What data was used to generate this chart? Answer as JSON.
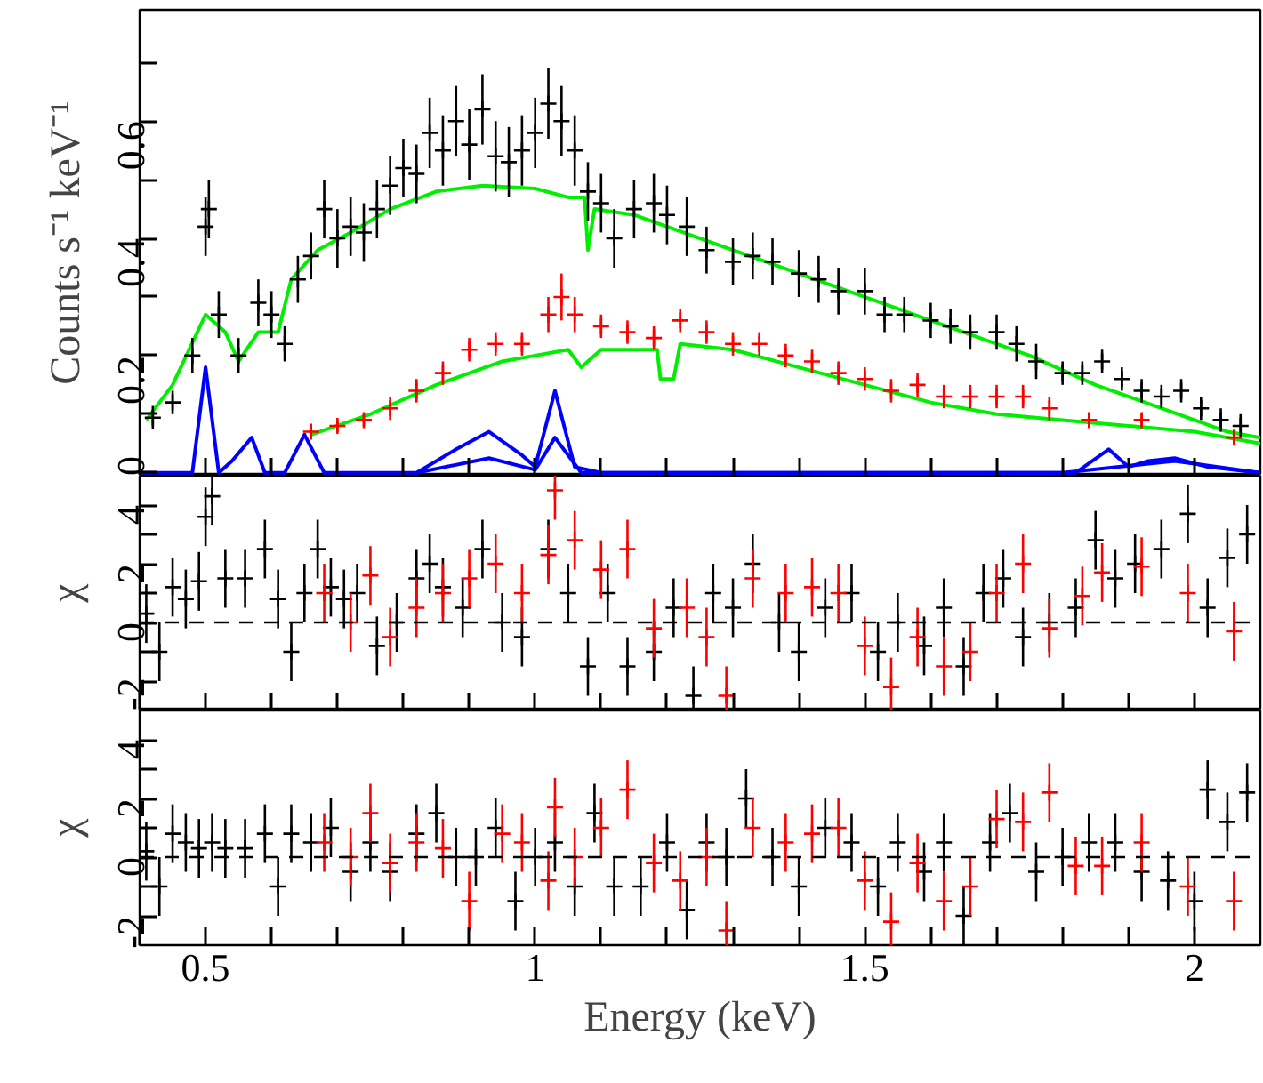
{
  "chart_data": [
    {
      "type": "scatter",
      "ylabel": "Counts s⁻¹ keV⁻¹",
      "xlim": [
        0.4,
        2.1
      ],
      "ylim": [
        -0.005,
        0.79
      ],
      "tick_labels": "y",
      "grid": false,
      "xticks": [
        {
          "value": 0.4,
          "label": null
        },
        0.5,
        {
          "value": 0.6,
          "label": null
        },
        {
          "value": 0.7,
          "label": null
        },
        {
          "value": 0.8,
          "label": null
        },
        {
          "value": 0.9,
          "label": null
        },
        1,
        {
          "value": 1.1,
          "label": null
        },
        {
          "value": 1.2,
          "label": null
        },
        {
          "value": 1.3,
          "label": null
        },
        {
          "value": 1.4,
          "label": null
        },
        1.5,
        {
          "value": 1.6,
          "label": null
        },
        {
          "value": 1.7,
          "label": null
        },
        {
          "value": 1.8,
          "label": null
        },
        {
          "value": 1.9,
          "label": null
        },
        2
      ],
      "yticks": [
        0,
        {
          "value": 0.1,
          "label": null
        },
        0.2,
        {
          "value": 0.3,
          "label": null
        },
        0.4,
        {
          "value": 0.5,
          "label": null
        },
        0.6,
        {
          "value": 0.7,
          "label": null
        }
      ],
      "series": [
        {
          "marker": "cross",
          "color": "#000000",
          "x": [
            0.42,
            0.45,
            0.48,
            0.5,
            0.505,
            0.52,
            0.55,
            0.58,
            0.6,
            0.62,
            0.64,
            0.66,
            0.68,
            0.7,
            0.72,
            0.74,
            0.76,
            0.78,
            0.8,
            0.82,
            0.84,
            0.86,
            0.88,
            0.9,
            0.92,
            0.94,
            0.96,
            0.98,
            1.0,
            1.02,
            1.04,
            1.06,
            1.08,
            1.1,
            1.12,
            1.15,
            1.18,
            1.2,
            1.23,
            1.26,
            1.3,
            1.33,
            1.36,
            1.4,
            1.43,
            1.46,
            1.5,
            1.53,
            1.56,
            1.6,
            1.63,
            1.66,
            1.7,
            1.73,
            1.76,
            1.8,
            1.83,
            1.86,
            1.89,
            1.92,
            1.95,
            1.98,
            2.01,
            2.04,
            2.07
          ],
          "values": [
            0.094,
            0.12,
            0.2,
            0.42,
            0.45,
            0.27,
            0.2,
            0.29,
            0.27,
            0.22,
            0.33,
            0.37,
            0.45,
            0.4,
            0.42,
            0.41,
            0.45,
            0.49,
            0.52,
            0.51,
            0.58,
            0.55,
            0.6,
            0.56,
            0.62,
            0.54,
            0.53,
            0.55,
            0.58,
            0.63,
            0.6,
            0.55,
            0.48,
            0.46,
            0.4,
            0.45,
            0.46,
            0.44,
            0.42,
            0.38,
            0.36,
            0.37,
            0.36,
            0.34,
            0.33,
            0.31,
            0.31,
            0.27,
            0.27,
            0.26,
            0.25,
            0.24,
            0.24,
            0.22,
            0.19,
            0.17,
            0.17,
            0.19,
            0.16,
            0.14,
            0.13,
            0.14,
            0.11,
            0.09,
            0.08
          ],
          "errors": [
            0.02,
            0.02,
            0.03,
            0.05,
            0.05,
            0.04,
            0.03,
            0.04,
            0.04,
            0.03,
            0.04,
            0.04,
            0.05,
            0.05,
            0.05,
            0.05,
            0.05,
            0.05,
            0.05,
            0.05,
            0.06,
            0.06,
            0.06,
            0.06,
            0.06,
            0.06,
            0.06,
            0.06,
            0.06,
            0.06,
            0.06,
            0.06,
            0.05,
            0.05,
            0.05,
            0.05,
            0.05,
            0.05,
            0.05,
            0.04,
            0.04,
            0.04,
            0.04,
            0.04,
            0.04,
            0.04,
            0.04,
            0.03,
            0.03,
            0.03,
            0.03,
            0.03,
            0.03,
            0.03,
            0.03,
            0.02,
            0.02,
            0.02,
            0.02,
            0.02,
            0.02,
            0.02,
            0.02,
            0.02,
            0.02
          ]
        },
        {
          "marker": "cross",
          "color": "#ff0000",
          "x": [
            0.66,
            0.7,
            0.74,
            0.78,
            0.82,
            0.86,
            0.9,
            0.94,
            0.98,
            1.02,
            1.04,
            1.06,
            1.1,
            1.14,
            1.18,
            1.22,
            1.26,
            1.3,
            1.34,
            1.38,
            1.42,
            1.46,
            1.5,
            1.54,
            1.58,
            1.62,
            1.66,
            1.7,
            1.74,
            1.78,
            1.84,
            1.92,
            2.06
          ],
          "values": [
            0.07,
            0.08,
            0.09,
            0.11,
            0.14,
            0.17,
            0.21,
            0.22,
            0.22,
            0.27,
            0.3,
            0.27,
            0.25,
            0.24,
            0.23,
            0.26,
            0.24,
            0.22,
            0.22,
            0.2,
            0.19,
            0.17,
            0.16,
            0.14,
            0.15,
            0.13,
            0.13,
            0.13,
            0.13,
            0.11,
            0.09,
            0.09,
            0.06
          ],
          "errors": [
            0.01,
            0.01,
            0.01,
            0.02,
            0.02,
            0.02,
            0.02,
            0.02,
            0.02,
            0.03,
            0.04,
            0.03,
            0.02,
            0.02,
            0.02,
            0.02,
            0.02,
            0.02,
            0.02,
            0.02,
            0.02,
            0.02,
            0.02,
            0.02,
            0.02,
            0.02,
            0.02,
            0.02,
            0.02,
            0.02,
            0.01,
            0.01,
            0.01
          ]
        },
        {
          "type": "line",
          "color": "#00ee00",
          "x": [
            0.41,
            0.45,
            0.5,
            0.53,
            0.55,
            0.58,
            0.61,
            0.63,
            0.67,
            0.72,
            0.78,
            0.85,
            0.92,
            1.0,
            1.05,
            1.075,
            1.08,
            1.09,
            1.15,
            1.25,
            1.35,
            1.45,
            1.55,
            1.65,
            1.75,
            1.85,
            1.95,
            2.05,
            2.1
          ],
          "values": [
            0.09,
            0.15,
            0.27,
            0.24,
            0.19,
            0.24,
            0.24,
            0.33,
            0.38,
            0.41,
            0.45,
            0.48,
            0.49,
            0.485,
            0.47,
            0.47,
            0.38,
            0.45,
            0.44,
            0.4,
            0.36,
            0.32,
            0.28,
            0.24,
            0.2,
            0.15,
            0.11,
            0.07,
            0.06
          ]
        },
        {
          "type": "line",
          "color": "#00ee00",
          "x": [
            0.66,
            0.75,
            0.85,
            0.95,
            1.0,
            1.05,
            1.07,
            1.1,
            1.15,
            1.185,
            1.19,
            1.21,
            1.22,
            1.3,
            1.4,
            1.5,
            1.6,
            1.7,
            1.8,
            1.9,
            2.0,
            2.1
          ],
          "values": [
            0.065,
            0.1,
            0.15,
            0.19,
            0.2,
            0.21,
            0.18,
            0.21,
            0.21,
            0.21,
            0.16,
            0.16,
            0.22,
            0.21,
            0.18,
            0.15,
            0.12,
            0.1,
            0.09,
            0.08,
            0.07,
            0.05
          ]
        },
        {
          "type": "line",
          "color": "#0000ff",
          "x": [
            0.4,
            0.48,
            0.5,
            0.52,
            0.54,
            0.57,
            0.59,
            0.62,
            0.65,
            0.68,
            0.82,
            0.88,
            0.93,
            0.98,
            1.0,
            1.03,
            1.06,
            1.1,
            1.82,
            1.87,
            1.9,
            1.93,
            1.97,
            2.02,
            2.1
          ],
          "values": [
            0,
            0,
            0.18,
            0,
            0.02,
            0.06,
            0,
            0,
            0.065,
            0,
            0,
            0.04,
            0.07,
            0.03,
            0.01,
            0.14,
            0.01,
            0,
            0,
            0.04,
            0.01,
            0.02,
            0.025,
            0.01,
            0
          ]
        },
        {
          "type": "line",
          "color": "#0000ff",
          "x": [
            0.82,
            0.93,
            1.0,
            1.03,
            1.07,
            1.8,
            1.97,
            2.1
          ],
          "values": [
            0,
            0.025,
            0.005,
            0.06,
            0,
            0,
            0.02,
            0
          ]
        }
      ]
    },
    {
      "type": "scatter",
      "ylabel": "χ",
      "xlim": [
        0.4,
        2.1
      ],
      "ylim": [
        -3,
        5
      ],
      "tick_labels": "y",
      "grid": false,
      "xticks": [
        {
          "value": 0.4,
          "label": null
        },
        0.5,
        {
          "value": 0.6,
          "label": null
        },
        {
          "value": 0.7,
          "label": null
        },
        {
          "value": 0.8,
          "label": null
        },
        {
          "value": 0.9,
          "label": null
        },
        1,
        {
          "value": 1.1,
          "label": null
        },
        {
          "value": 1.2,
          "label": null
        },
        {
          "value": 1.3,
          "label": null
        },
        {
          "value": 1.4,
          "label": null
        },
        1.5,
        {
          "value": 1.6,
          "label": null
        },
        {
          "value": 1.7,
          "label": null
        },
        {
          "value": 1.8,
          "label": null
        },
        {
          "value": 1.9,
          "label": null
        },
        2
      ],
      "yticks": [
        -2,
        {
          "value": -1,
          "label": null
        },
        0,
        {
          "value": 1,
          "label": null
        },
        2,
        {
          "value": 3,
          "label": null
        },
        4
      ],
      "ref_lines": [
        {
          "axis": "y",
          "value": 0,
          "label": null,
          "color": "#000000",
          "line_style": "dashed"
        }
      ],
      "series": [
        {
          "marker": "cross",
          "color": "#000000",
          "x": [
            0.41,
            0.43,
            0.45,
            0.47,
            0.49,
            0.5,
            0.51,
            0.53,
            0.56,
            0.59,
            0.61,
            0.63,
            0.65,
            0.67,
            0.69,
            0.71,
            0.73,
            0.76,
            0.79,
            0.82,
            0.84,
            0.86,
            0.89,
            0.92,
            0.95,
            0.98,
            1.02,
            1.05,
            1.08,
            1.11,
            1.14,
            1.18,
            1.21,
            1.24,
            1.27,
            1.3,
            1.33,
            1.37,
            1.4,
            1.44,
            1.48,
            1.52,
            1.55,
            1.59,
            1.62,
            1.65,
            1.68,
            1.71,
            1.74,
            1.78,
            1.82,
            1.85,
            1.88,
            1.91,
            1.95,
            1.99,
            2.02,
            2.05,
            2.08
          ],
          "values": [
            0.3,
            -1,
            1.2,
            0.8,
            1.4,
            3.6,
            4.3,
            1.5,
            1.5,
            2.5,
            0.8,
            -1,
            1,
            2.5,
            1.2,
            0.8,
            1,
            -0.8,
            0,
            1.5,
            2,
            1.2,
            0.5,
            2.5,
            0,
            -0.5,
            2.5,
            1,
            -1.5,
            1,
            -1.5,
            -1,
            0.5,
            -2.5,
            1,
            0.5,
            2,
            0,
            -1,
            0.5,
            1,
            -1,
            0,
            -0.8,
            0.5,
            -1.5,
            1,
            1.5,
            -0.5,
            0,
            0.5,
            2.8,
            1.5,
            2,
            2.5,
            3.7,
            0.5,
            2.2,
            3
          ],
          "errors": [
            1,
            1,
            1,
            1,
            1,
            1,
            1,
            1,
            1,
            1,
            1,
            1,
            1,
            1,
            1,
            1,
            1,
            1,
            1,
            1,
            1,
            1,
            1,
            1,
            1,
            1,
            1,
            1,
            1,
            1,
            1,
            1,
            1,
            1,
            1,
            1,
            1,
            1,
            1,
            1,
            1,
            1,
            1,
            1,
            1,
            1,
            1,
            1,
            1,
            1,
            1,
            1,
            1,
            1,
            1,
            1,
            1,
            1,
            1
          ]
        },
        {
          "marker": "cross",
          "color": "#ff0000",
          "x": [
            0.68,
            0.72,
            0.75,
            0.78,
            0.82,
            0.86,
            0.9,
            0.94,
            0.98,
            1.02,
            1.03,
            1.06,
            1.1,
            1.14,
            1.18,
            1.23,
            1.26,
            1.29,
            1.33,
            1.38,
            1.42,
            1.46,
            1.5,
            1.54,
            1.58,
            1.62,
            1.66,
            1.7,
            1.74,
            1.78,
            1.83,
            1.86,
            1.92,
            1.99,
            2.06
          ],
          "values": [
            1,
            0,
            1.6,
            -0.5,
            0.5,
            1,
            1.5,
            2,
            1,
            2.3,
            4.5,
            2.8,
            1.8,
            2.5,
            -0.2,
            0.5,
            -0.5,
            -2.5,
            1.5,
            1,
            1.2,
            1,
            -0.8,
            -2.2,
            -0.5,
            -1.5,
            -1,
            1,
            2,
            -0.2,
            0.9,
            1.7,
            1.9,
            1,
            -0.3
          ],
          "errors": [
            1,
            1,
            1,
            1,
            1,
            1,
            1,
            1,
            1,
            1,
            1,
            1,
            1,
            1,
            1,
            1,
            1,
            1,
            1,
            1,
            1,
            1,
            1,
            1,
            1,
            1,
            1,
            1,
            1,
            1,
            1,
            1,
            1,
            1,
            1
          ]
        }
      ]
    },
    {
      "type": "scatter",
      "ylabel": "χ",
      "xlabel": "Energy (keV)",
      "xlim": [
        0.4,
        2.1
      ],
      "ylim": [
        -3,
        5
      ],
      "grid": false,
      "xticks": [
        {
          "value": 0.4,
          "label": null
        },
        0.5,
        {
          "value": 0.6,
          "label": null
        },
        {
          "value": 0.7,
          "label": null
        },
        {
          "value": 0.8,
          "label": null
        },
        {
          "value": 0.9,
          "label": null
        },
        1,
        {
          "value": 1.1,
          "label": null
        },
        {
          "value": 1.2,
          "label": null
        },
        {
          "value": 1.3,
          "label": null
        },
        {
          "value": 1.4,
          "label": null
        },
        1.5,
        {
          "value": 1.6,
          "label": null
        },
        {
          "value": 1.7,
          "label": null
        },
        {
          "value": 1.8,
          "label": null
        },
        {
          "value": 1.9,
          "label": null
        },
        2
      ],
      "yticks": [
        -2,
        {
          "value": -1,
          "label": null
        },
        0,
        {
          "value": 1,
          "label": null
        },
        2,
        {
          "value": 3,
          "label": null
        },
        4
      ],
      "ref_lines": [
        {
          "axis": "y",
          "value": 0,
          "label": null,
          "color": "#000000",
          "line_style": "dashed"
        }
      ],
      "series": [
        {
          "marker": "cross",
          "color": "#000000",
          "x": [
            0.41,
            0.43,
            0.45,
            0.47,
            0.49,
            0.51,
            0.53,
            0.56,
            0.59,
            0.61,
            0.63,
            0.66,
            0.69,
            0.72,
            0.75,
            0.78,
            0.82,
            0.85,
            0.88,
            0.91,
            0.94,
            0.97,
            1.0,
            1.03,
            1.06,
            1.09,
            1.12,
            1.16,
            1.2,
            1.23,
            1.26,
            1.29,
            1.32,
            1.36,
            1.4,
            1.44,
            1.48,
            1.52,
            1.55,
            1.59,
            1.62,
            1.65,
            1.69,
            1.72,
            1.76,
            1.8,
            1.84,
            1.88,
            1.92,
            1.96,
            2.0,
            2.02,
            2.05,
            2.08
          ],
          "values": [
            0.2,
            -1,
            0.8,
            0.5,
            0.3,
            0.5,
            0.3,
            0.3,
            0.8,
            -1,
            0.8,
            0.5,
            1,
            -0.5,
            0.5,
            -0.5,
            0.8,
            1.5,
            0,
            0,
            1,
            -1.5,
            0,
            0.5,
            -1,
            1.5,
            -1,
            -1,
            0.5,
            -1.8,
            0.5,
            0,
            2,
            0,
            -1,
            1,
            0.5,
            -1,
            0.5,
            -0.5,
            0.5,
            -2,
            0.5,
            1.5,
            -0.5,
            0,
            0.5,
            0.5,
            -0.5,
            -0.8,
            -1.5,
            2.3,
            1.2,
            2.2
          ],
          "errors": [
            1,
            1,
            1,
            1,
            1,
            1,
            1,
            1,
            1,
            1,
            1,
            1,
            1,
            1,
            1,
            1,
            1,
            1,
            1,
            1,
            1,
            1,
            1,
            1,
            1,
            1,
            1,
            1,
            1,
            1,
            1,
            1,
            1,
            1,
            1,
            1,
            1,
            1,
            1,
            1,
            1,
            1,
            1,
            1,
            1,
            1,
            1,
            1,
            1,
            1,
            1,
            1,
            1,
            1
          ]
        },
        {
          "marker": "cross",
          "color": "#ff0000",
          "x": [
            0.68,
            0.72,
            0.75,
            0.78,
            0.82,
            0.86,
            0.9,
            0.95,
            0.98,
            1.02,
            1.03,
            1.06,
            1.1,
            1.14,
            1.18,
            1.22,
            1.26,
            1.29,
            1.33,
            1.38,
            1.42,
            1.46,
            1.5,
            1.54,
            1.58,
            1.62,
            1.66,
            1.7,
            1.74,
            1.78,
            1.82,
            1.86,
            1.92,
            1.99,
            2.06
          ],
          "values": [
            0.5,
            0,
            1.5,
            -0.2,
            0.5,
            0.3,
            -1.5,
            0.8,
            0.5,
            -0.8,
            1.7,
            0,
            1,
            2.3,
            -0.2,
            -0.8,
            0,
            -2.5,
            1,
            0.5,
            0.8,
            1,
            -0.8,
            -2.2,
            -0.2,
            -1.5,
            -1,
            1.3,
            1.2,
            2.2,
            -0.3,
            -0.3,
            0.5,
            -1,
            -1.5
          ],
          "errors": [
            1,
            1,
            1,
            1,
            1,
            1,
            1,
            1,
            1,
            1,
            1,
            1,
            1,
            1,
            1,
            1,
            1,
            1,
            1,
            1,
            1,
            1,
            1,
            1,
            1,
            1,
            1,
            1,
            1,
            1,
            1,
            1,
            1,
            1,
            1
          ]
        }
      ]
    }
  ]
}
